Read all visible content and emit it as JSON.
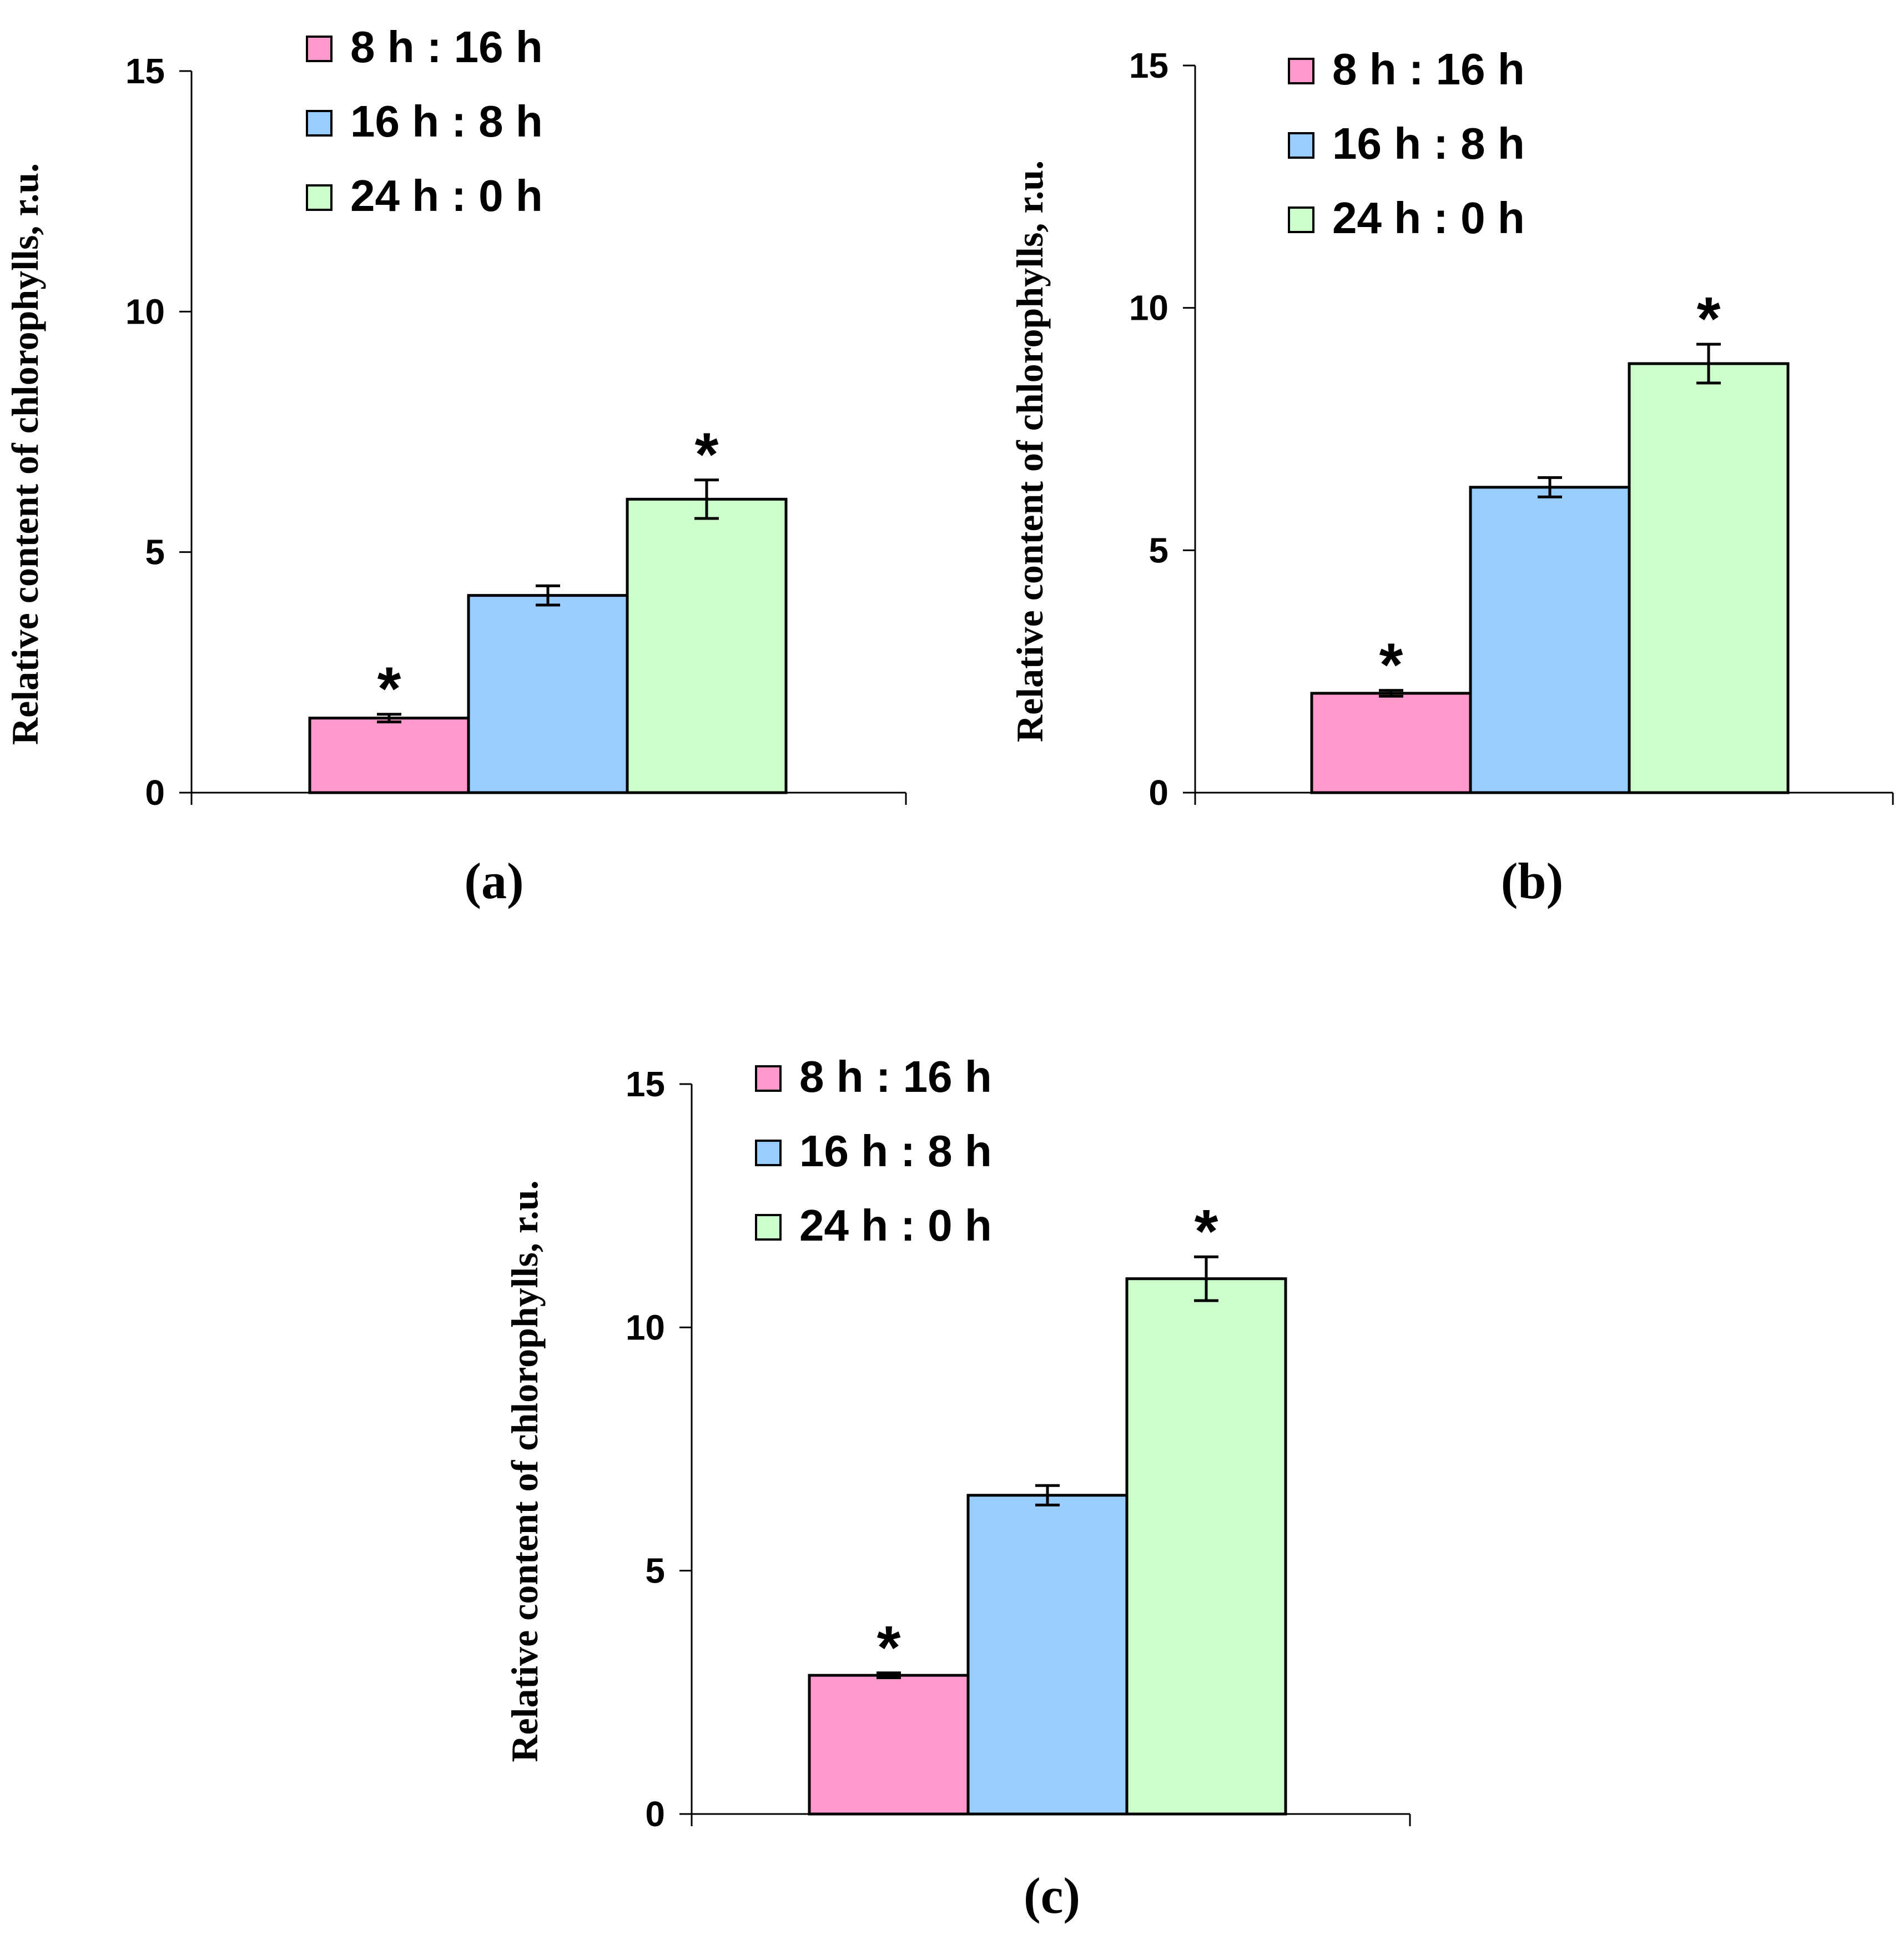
{
  "legend": [
    {
      "label": "8 h : 16 h",
      "color": "#ff99cc"
    },
    {
      "label": "16 h : 8 h",
      "color": "#99ccff"
    },
    {
      "label": "24 h : 0 h",
      "color": "#ccffcc"
    }
  ],
  "chart_data": [
    {
      "type": "bar",
      "panel_label": "(a)",
      "ylabel": "Relative content of chlorophylls, r.u.",
      "ylim": [
        0,
        15
      ],
      "yticks": [
        "0",
        "5",
        "10",
        "15"
      ],
      "series": [
        {
          "name": "8 h : 16 h",
          "value": 1.55,
          "error": 0.08,
          "significance": "*"
        },
        {
          "name": "16 h : 8 h",
          "value": 4.1,
          "error": 0.2,
          "significance": ""
        },
        {
          "name": "24 h : 0 h",
          "value": 6.1,
          "error": 0.4,
          "significance": "*"
        }
      ]
    },
    {
      "type": "bar",
      "panel_label": "(b)",
      "ylabel": "Relative content of chlorophylls, r.u.",
      "ylim": [
        0,
        15
      ],
      "yticks": [
        "0",
        "5",
        "10",
        "15"
      ],
      "series": [
        {
          "name": "8 h : 16 h",
          "value": 2.05,
          "error": 0.06,
          "significance": "*"
        },
        {
          "name": "16 h : 8 h",
          "value": 6.3,
          "error": 0.2,
          "significance": ""
        },
        {
          "name": "24 h : 0 h",
          "value": 8.85,
          "error": 0.4,
          "significance": "*"
        }
      ]
    },
    {
      "type": "bar",
      "panel_label": "(c)",
      "ylabel": "Relative content of chlorophylls, r.u.",
      "ylim": [
        0,
        15
      ],
      "yticks": [
        "0",
        "5",
        "10",
        "15"
      ],
      "series": [
        {
          "name": "8 h : 16 h",
          "value": 2.85,
          "error": 0.05,
          "significance": "*"
        },
        {
          "name": "16 h : 8 h",
          "value": 6.55,
          "error": 0.2,
          "significance": ""
        },
        {
          "name": "24 h : 0 h",
          "value": 11.0,
          "error": 0.45,
          "significance": "*"
        }
      ]
    }
  ]
}
